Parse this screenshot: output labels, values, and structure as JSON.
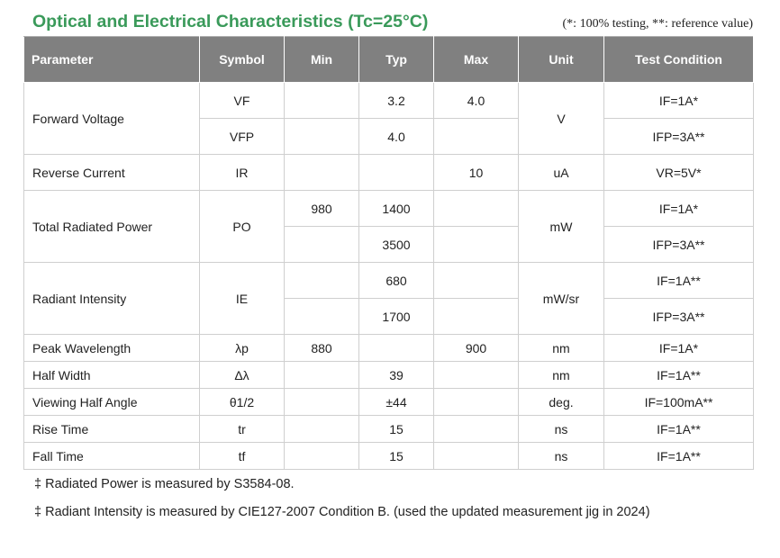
{
  "title": "Optical and Electrical Characteristics (Tc=25°C)",
  "note": "(*: 100% testing, **: reference value)",
  "headers": {
    "parameter": "Parameter",
    "symbol": "Symbol",
    "min": "Min",
    "typ": "Typ",
    "max": "Max",
    "unit": "Unit",
    "test_condition": "Test Condition"
  },
  "rows": {
    "forward_voltage": {
      "parameter": "Forward Voltage",
      "unit": "V",
      "sub": [
        {
          "symbol": "VF",
          "min": "",
          "typ": "3.2",
          "max": "4.0",
          "condition": "IF=1A*"
        },
        {
          "symbol": "VFP",
          "min": "",
          "typ": "4.0",
          "max": "",
          "condition": "IFP=3A**"
        }
      ]
    },
    "reverse_current": {
      "parameter": "Reverse Current",
      "symbol": "IR",
      "min": "",
      "typ": "",
      "max": "10",
      "unit": "uA",
      "condition": "VR=5V*"
    },
    "total_radiated_power": {
      "parameter": "Total Radiated Power",
      "symbol": "PO",
      "unit": "mW",
      "sub": [
        {
          "min": "980",
          "typ": "1400",
          "max": "",
          "condition": "IF=1A*"
        },
        {
          "min": "",
          "typ": "3500",
          "max": "",
          "condition": "IFP=3A**"
        }
      ]
    },
    "radiant_intensity": {
      "parameter": "Radiant Intensity",
      "symbol": "IE",
      "unit": "mW/sr",
      "sub": [
        {
          "min": "",
          "typ": "680",
          "max": "",
          "condition": "IF=1A**"
        },
        {
          "min": "",
          "typ": "1700",
          "max": "",
          "condition": "IFP=3A**"
        }
      ]
    },
    "peak_wavelength": {
      "parameter": "Peak Wavelength",
      "symbol": "λp",
      "min": "880",
      "typ": "",
      "max": "900",
      "unit": "nm",
      "condition": "IF=1A*"
    },
    "half_width": {
      "parameter": "Half Width",
      "symbol": "Δλ",
      "min": "",
      "typ": "39",
      "max": "",
      "unit": "nm",
      "condition": "IF=1A**"
    },
    "viewing_half_angle": {
      "parameter": "Viewing Half Angle",
      "symbol": "θ1/2",
      "min": "",
      "typ": "±44",
      "max": "",
      "unit": "deg.",
      "condition": "IF=100mA**"
    },
    "rise_time": {
      "parameter": "Rise Time",
      "symbol": "tr",
      "min": "",
      "typ": "15",
      "max": "",
      "unit": "ns",
      "condition": "IF=1A**"
    },
    "fall_time": {
      "parameter": "Fall Time",
      "symbol": "tf",
      "min": "",
      "typ": "15",
      "max": "",
      "unit": "ns",
      "condition": "IF=1A**"
    }
  },
  "footnotes": [
    "‡ Radiated Power is measured by S3584-08.",
    "‡ Radiant Intensity is measured by CIE127-2007 Condition B. (used the updated measurement jig in 2024)"
  ]
}
